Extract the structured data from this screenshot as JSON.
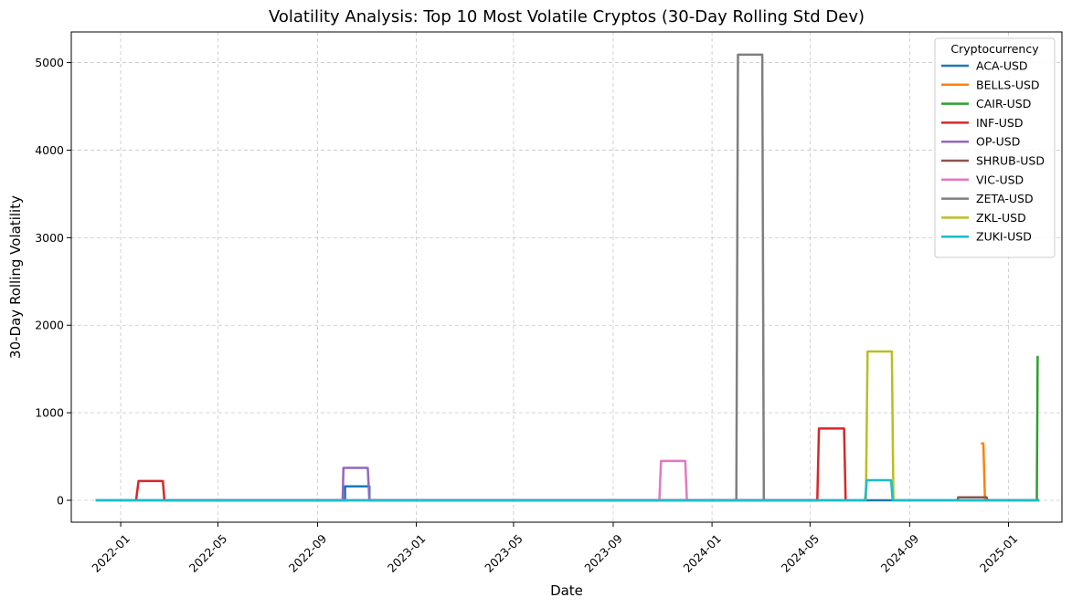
{
  "chart_data": {
    "type": "line",
    "title": "Volatility Analysis: Top 10 Most Volatile Cryptos (30-Day Rolling Std Dev)",
    "xlabel": "Date",
    "ylabel": "30-Day Rolling Volatility",
    "x_range": [
      "2021-11-01",
      "2025-03-08"
    ],
    "ylim": [
      -250,
      5350
    ],
    "x_ticks": [
      "2022-01",
      "2022-05",
      "2022-09",
      "2023-01",
      "2023-05",
      "2023-09",
      "2024-01",
      "2024-05",
      "2024-09",
      "2025-01"
    ],
    "y_ticks": [
      0,
      1000,
      2000,
      3000,
      4000,
      5000
    ],
    "grid": true,
    "legend_title": "Cryptocurrency",
    "legend_position": "top-right",
    "series": [
      {
        "name": "ACA-USD",
        "color": "#1f77b4",
        "points": [
          [
            "2021-12-01",
            0
          ],
          [
            "2022-10-05",
            0
          ],
          [
            "2022-10-05",
            160
          ],
          [
            "2022-11-04",
            160
          ],
          [
            "2022-11-04",
            0
          ],
          [
            "2025-02-08",
            0
          ]
        ]
      },
      {
        "name": "BELLS-USD",
        "color": "#ff7f0e",
        "points": [
          [
            "2024-11-28",
            650
          ],
          [
            "2024-12-01",
            650
          ],
          [
            "2024-12-03",
            0
          ],
          [
            "2025-02-08",
            0
          ]
        ]
      },
      {
        "name": "CAIR-USD",
        "color": "#2ca02c",
        "points": [
          [
            "2025-02-05",
            0
          ],
          [
            "2025-02-06",
            1650
          ]
        ]
      },
      {
        "name": "INF-USD",
        "color": "#d62728",
        "points": [
          [
            "2022-01-20",
            0
          ],
          [
            "2022-01-23",
            220
          ],
          [
            "2022-02-22",
            220
          ],
          [
            "2022-02-24",
            0
          ],
          [
            "2024-05-10",
            0
          ],
          [
            "2024-05-12",
            820
          ],
          [
            "2024-06-12",
            820
          ],
          [
            "2024-06-14",
            0
          ]
        ]
      },
      {
        "name": "OP-USD",
        "color": "#9467bd",
        "points": [
          [
            "2022-10-02",
            0
          ],
          [
            "2022-10-03",
            370
          ],
          [
            "2022-11-02",
            370
          ],
          [
            "2022-11-04",
            0
          ]
        ]
      },
      {
        "name": "SHRUB-USD",
        "color": "#8c564b",
        "points": [
          [
            "2024-10-30",
            0
          ],
          [
            "2024-10-31",
            35
          ],
          [
            "2024-12-05",
            35
          ],
          [
            "2024-12-06",
            0
          ]
        ]
      },
      {
        "name": "VIC-USD",
        "color": "#e377c2",
        "points": [
          [
            "2023-10-28",
            0
          ],
          [
            "2023-10-30",
            450
          ],
          [
            "2023-11-29",
            450
          ],
          [
            "2023-12-01",
            0
          ]
        ]
      },
      {
        "name": "ZETA-USD",
        "color": "#7f7f7f",
        "points": [
          [
            "2024-01-31",
            0
          ],
          [
            "2024-02-02",
            5090
          ],
          [
            "2024-03-03",
            5090
          ],
          [
            "2024-03-05",
            0
          ]
        ]
      },
      {
        "name": "ZKL-USD",
        "color": "#bcbd22",
        "points": [
          [
            "2024-07-09",
            0
          ],
          [
            "2024-07-11",
            1700
          ],
          [
            "2024-08-10",
            1700
          ],
          [
            "2024-08-12",
            0
          ]
        ]
      },
      {
        "name": "ZUKI-USD",
        "color": "#17becf",
        "points": [
          [
            "2021-12-01",
            0
          ],
          [
            "2024-07-08",
            0
          ],
          [
            "2024-07-10",
            230
          ],
          [
            "2024-08-09",
            230
          ],
          [
            "2024-08-11",
            0
          ],
          [
            "2025-02-08",
            0
          ]
        ]
      }
    ]
  }
}
